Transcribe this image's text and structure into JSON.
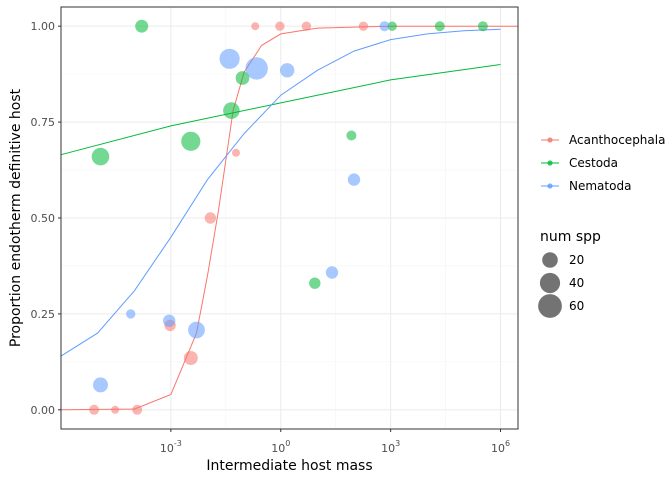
{
  "chart_data": {
    "type": "scatter",
    "xlabel": "Intermediate host mass",
    "ylabel": "Proportion endotherm definitive host",
    "x_scale": "log10",
    "xlim": [
      1e-06,
      3000000
    ],
    "ylim": [
      -0.05,
      1.05
    ],
    "x_ticks": [
      0.001,
      1,
      1000,
      1000000
    ],
    "x_tick_labels": [
      {
        "base": "10",
        "exp": "-3"
      },
      {
        "base": "10",
        "exp": "0"
      },
      {
        "base": "10",
        "exp": "3"
      },
      {
        "base": "10",
        "exp": "6"
      }
    ],
    "y_ticks": [
      0,
      0.25,
      0.5,
      0.75,
      1
    ],
    "y_tick_labels": [
      "0.00",
      "0.25",
      "0.50",
      "0.75",
      "1.00"
    ],
    "grid": true,
    "legend_position": "right",
    "series": [
      {
        "name": "Acanthocephala",
        "color": "#F8766D",
        "points": [
          {
            "x": 8e-06,
            "y": 0.0,
            "n": 5
          },
          {
            "x": 3e-05,
            "y": 0.0,
            "n": 2
          },
          {
            "x": 0.00012,
            "y": 0.0,
            "n": 5
          },
          {
            "x": 0.00095,
            "y": 0.22,
            "n": 8
          },
          {
            "x": 0.0035,
            "y": 0.135,
            "n": 15
          },
          {
            "x": 0.012,
            "y": 0.5,
            "n": 8
          },
          {
            "x": 0.06,
            "y": 0.67,
            "n": 2
          },
          {
            "x": 0.2,
            "y": 1.0,
            "n": 2
          },
          {
            "x": 0.95,
            "y": 1.0,
            "n": 4
          },
          {
            "x": 5,
            "y": 1.0,
            "n": 4
          },
          {
            "x": 180,
            "y": 1.0,
            "n": 4
          }
        ],
        "fit": [
          {
            "x": 1e-06,
            "y": 0.0
          },
          {
            "x": 0.0001,
            "y": 0.002
          },
          {
            "x": 0.001,
            "y": 0.04
          },
          {
            "x": 0.005,
            "y": 0.2
          },
          {
            "x": 0.01,
            "y": 0.35
          },
          {
            "x": 0.02,
            "y": 0.52
          },
          {
            "x": 0.05,
            "y": 0.78
          },
          {
            "x": 0.1,
            "y": 0.88
          },
          {
            "x": 0.3,
            "y": 0.95
          },
          {
            "x": 1,
            "y": 0.98
          },
          {
            "x": 10,
            "y": 0.995
          },
          {
            "x": 1000,
            "y": 1.0
          },
          {
            "x": 3000000,
            "y": 1.0
          }
        ]
      },
      {
        "name": "Cestoda",
        "color": "#00BA38",
        "points": [
          {
            "x": 1.2e-05,
            "y": 0.66,
            "n": 28
          },
          {
            "x": 0.00016,
            "y": 1.0,
            "n": 12
          },
          {
            "x": 0.0035,
            "y": 0.7,
            "n": 35
          },
          {
            "x": 0.045,
            "y": 0.78,
            "n": 24
          },
          {
            "x": 0.09,
            "y": 0.865,
            "n": 14
          },
          {
            "x": 8.5,
            "y": 0.33,
            "n": 8
          },
          {
            "x": 85,
            "y": 0.715,
            "n": 5
          },
          {
            "x": 1100,
            "y": 1.0,
            "n": 4
          },
          {
            "x": 22000,
            "y": 1.0,
            "n": 5
          },
          {
            "x": 330000,
            "y": 1.0,
            "n": 5
          }
        ],
        "fit": [
          {
            "x": 1e-06,
            "y": 0.665
          },
          {
            "x": 0.001,
            "y": 0.74
          },
          {
            "x": 1,
            "y": 0.8
          },
          {
            "x": 1000,
            "y": 0.86
          },
          {
            "x": 1000000,
            "y": 0.9
          }
        ]
      },
      {
        "name": "Nematoda",
        "color": "#619CFF",
        "points": [
          {
            "x": 1.2e-05,
            "y": 0.065,
            "n": 18
          },
          {
            "x": 8e-05,
            "y": 0.25,
            "n": 4
          },
          {
            "x": 0.0009,
            "y": 0.232,
            "n": 10
          },
          {
            "x": 0.005,
            "y": 0.208,
            "n": 25
          },
          {
            "x": 0.04,
            "y": 0.915,
            "n": 40
          },
          {
            "x": 0.22,
            "y": 0.89,
            "n": 52
          },
          {
            "x": 1.5,
            "y": 0.885,
            "n": 16
          },
          {
            "x": 25,
            "y": 0.358,
            "n": 10
          },
          {
            "x": 100,
            "y": 0.6,
            "n": 10
          },
          {
            "x": 680,
            "y": 1.0,
            "n": 5
          }
        ],
        "fit": [
          {
            "x": 1e-06,
            "y": 0.14
          },
          {
            "x": 1e-05,
            "y": 0.2
          },
          {
            "x": 0.0001,
            "y": 0.31
          },
          {
            "x": 0.001,
            "y": 0.45
          },
          {
            "x": 0.01,
            "y": 0.6
          },
          {
            "x": 0.1,
            "y": 0.72
          },
          {
            "x": 1,
            "y": 0.82
          },
          {
            "x": 10,
            "y": 0.885
          },
          {
            "x": 100,
            "y": 0.935
          },
          {
            "x": 1000,
            "y": 0.965
          },
          {
            "x": 10000,
            "y": 0.98
          },
          {
            "x": 100000,
            "y": 0.988
          },
          {
            "x": 1000000,
            "y": 0.992
          }
        ]
      }
    ],
    "size_legend": {
      "title": "num spp",
      "values": [
        20,
        40,
        60
      ]
    }
  }
}
